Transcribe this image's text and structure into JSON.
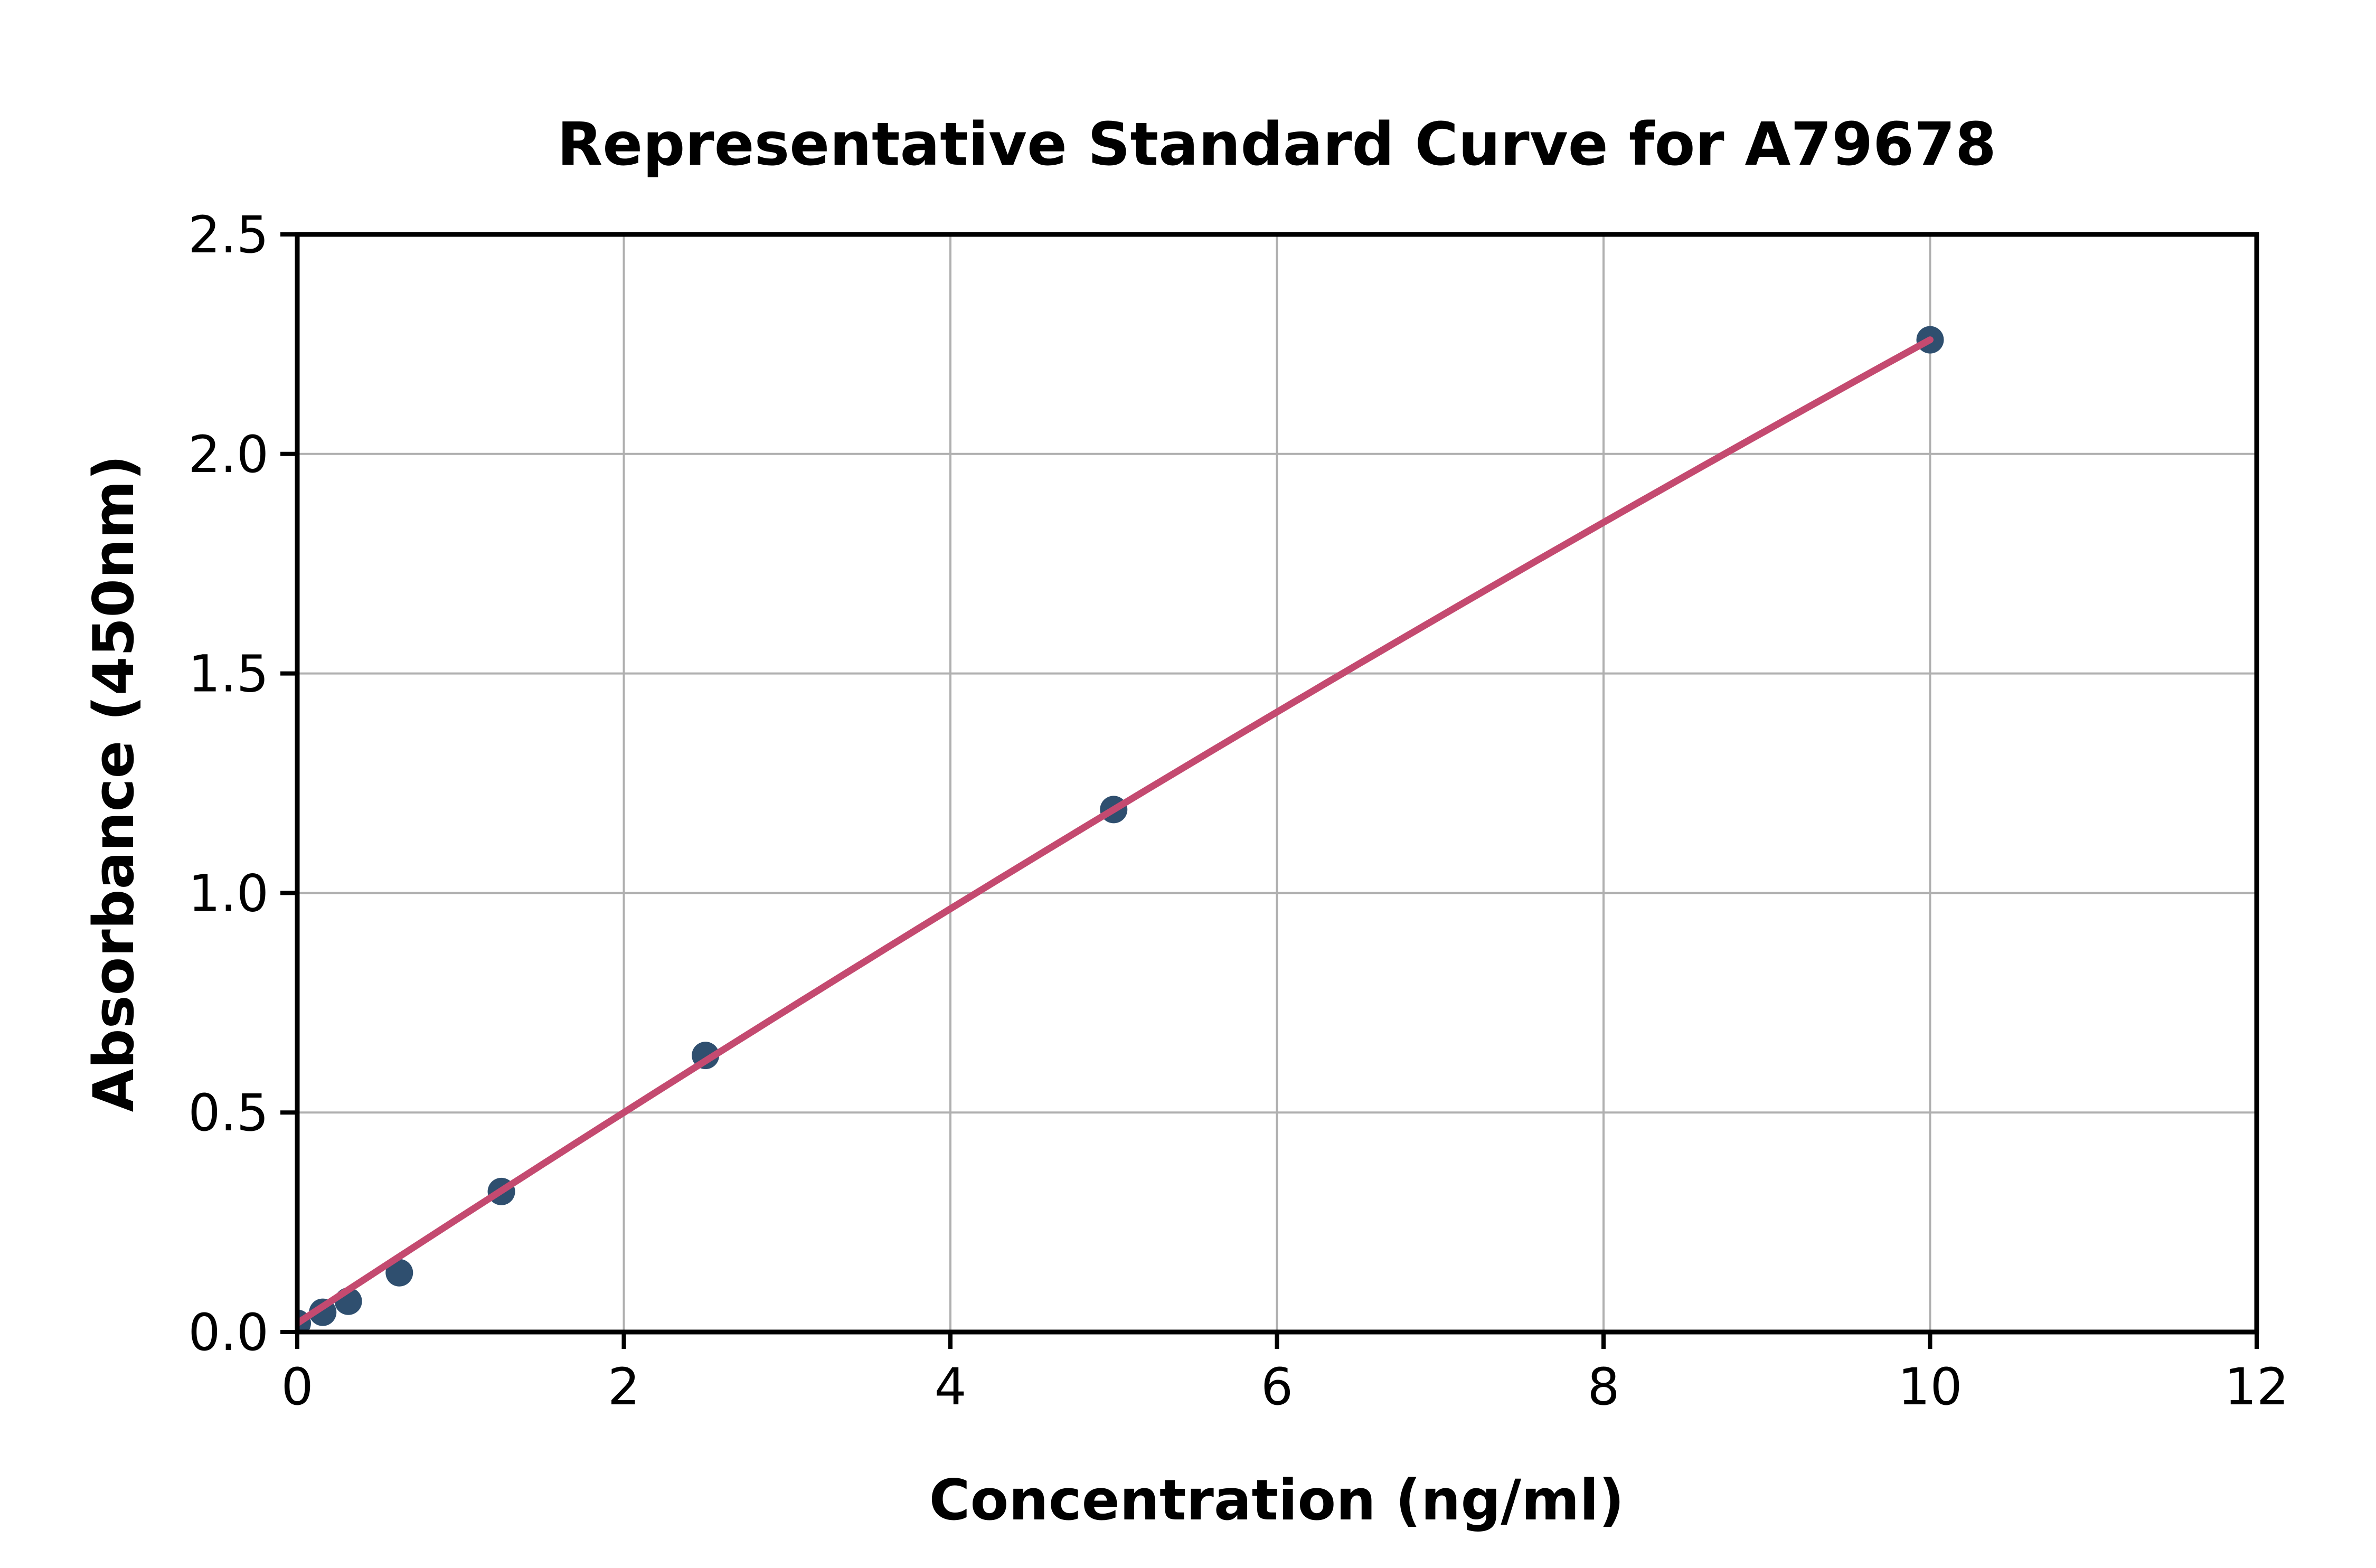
{
  "title": "Representative Standard Curve for A79678",
  "colors": {
    "background": "#FFFFFF",
    "point": "#2F4F6F",
    "fit_line": "#C44A70",
    "grid": "#B0B0B0",
    "axis": "#000000",
    "text": "#000000"
  },
  "chart_data": {
    "type": "scatter",
    "title": "Representative Standard Curve for A79678",
    "xlabel": "Concentration (ng/ml)",
    "ylabel": "Absorbance (450nm)",
    "xlim": [
      0,
      12
    ],
    "ylim": [
      0,
      2.5
    ],
    "xticks": [
      0,
      2,
      4,
      6,
      8,
      10,
      12
    ],
    "xtick_labels": [
      "0",
      "2",
      "4",
      "6",
      "8",
      "10",
      "12"
    ],
    "yticks": [
      0,
      0.5,
      1,
      1.5,
      2,
      2.5
    ],
    "ytick_labels": [
      "0.0",
      "0.5",
      "1.0",
      "1.5",
      "2.0",
      "2.5"
    ],
    "grid": true,
    "legend": "none",
    "points": [
      {
        "x": 0,
        "y": 0.02
      },
      {
        "x": 0.156,
        "y": 0.045
      },
      {
        "x": 0.3125,
        "y": 0.07
      },
      {
        "x": 0.625,
        "y": 0.135
      },
      {
        "x": 1.25,
        "y": 0.32
      },
      {
        "x": 2.5,
        "y": 0.63
      },
      {
        "x": 5,
        "y": 1.19
      },
      {
        "x": 10,
        "y": 2.26
      }
    ],
    "fit_line": {
      "type": "quadratic",
      "a": 0.02,
      "b": 0.244,
      "c": -0.002,
      "x_range": [
        0,
        10
      ]
    }
  }
}
